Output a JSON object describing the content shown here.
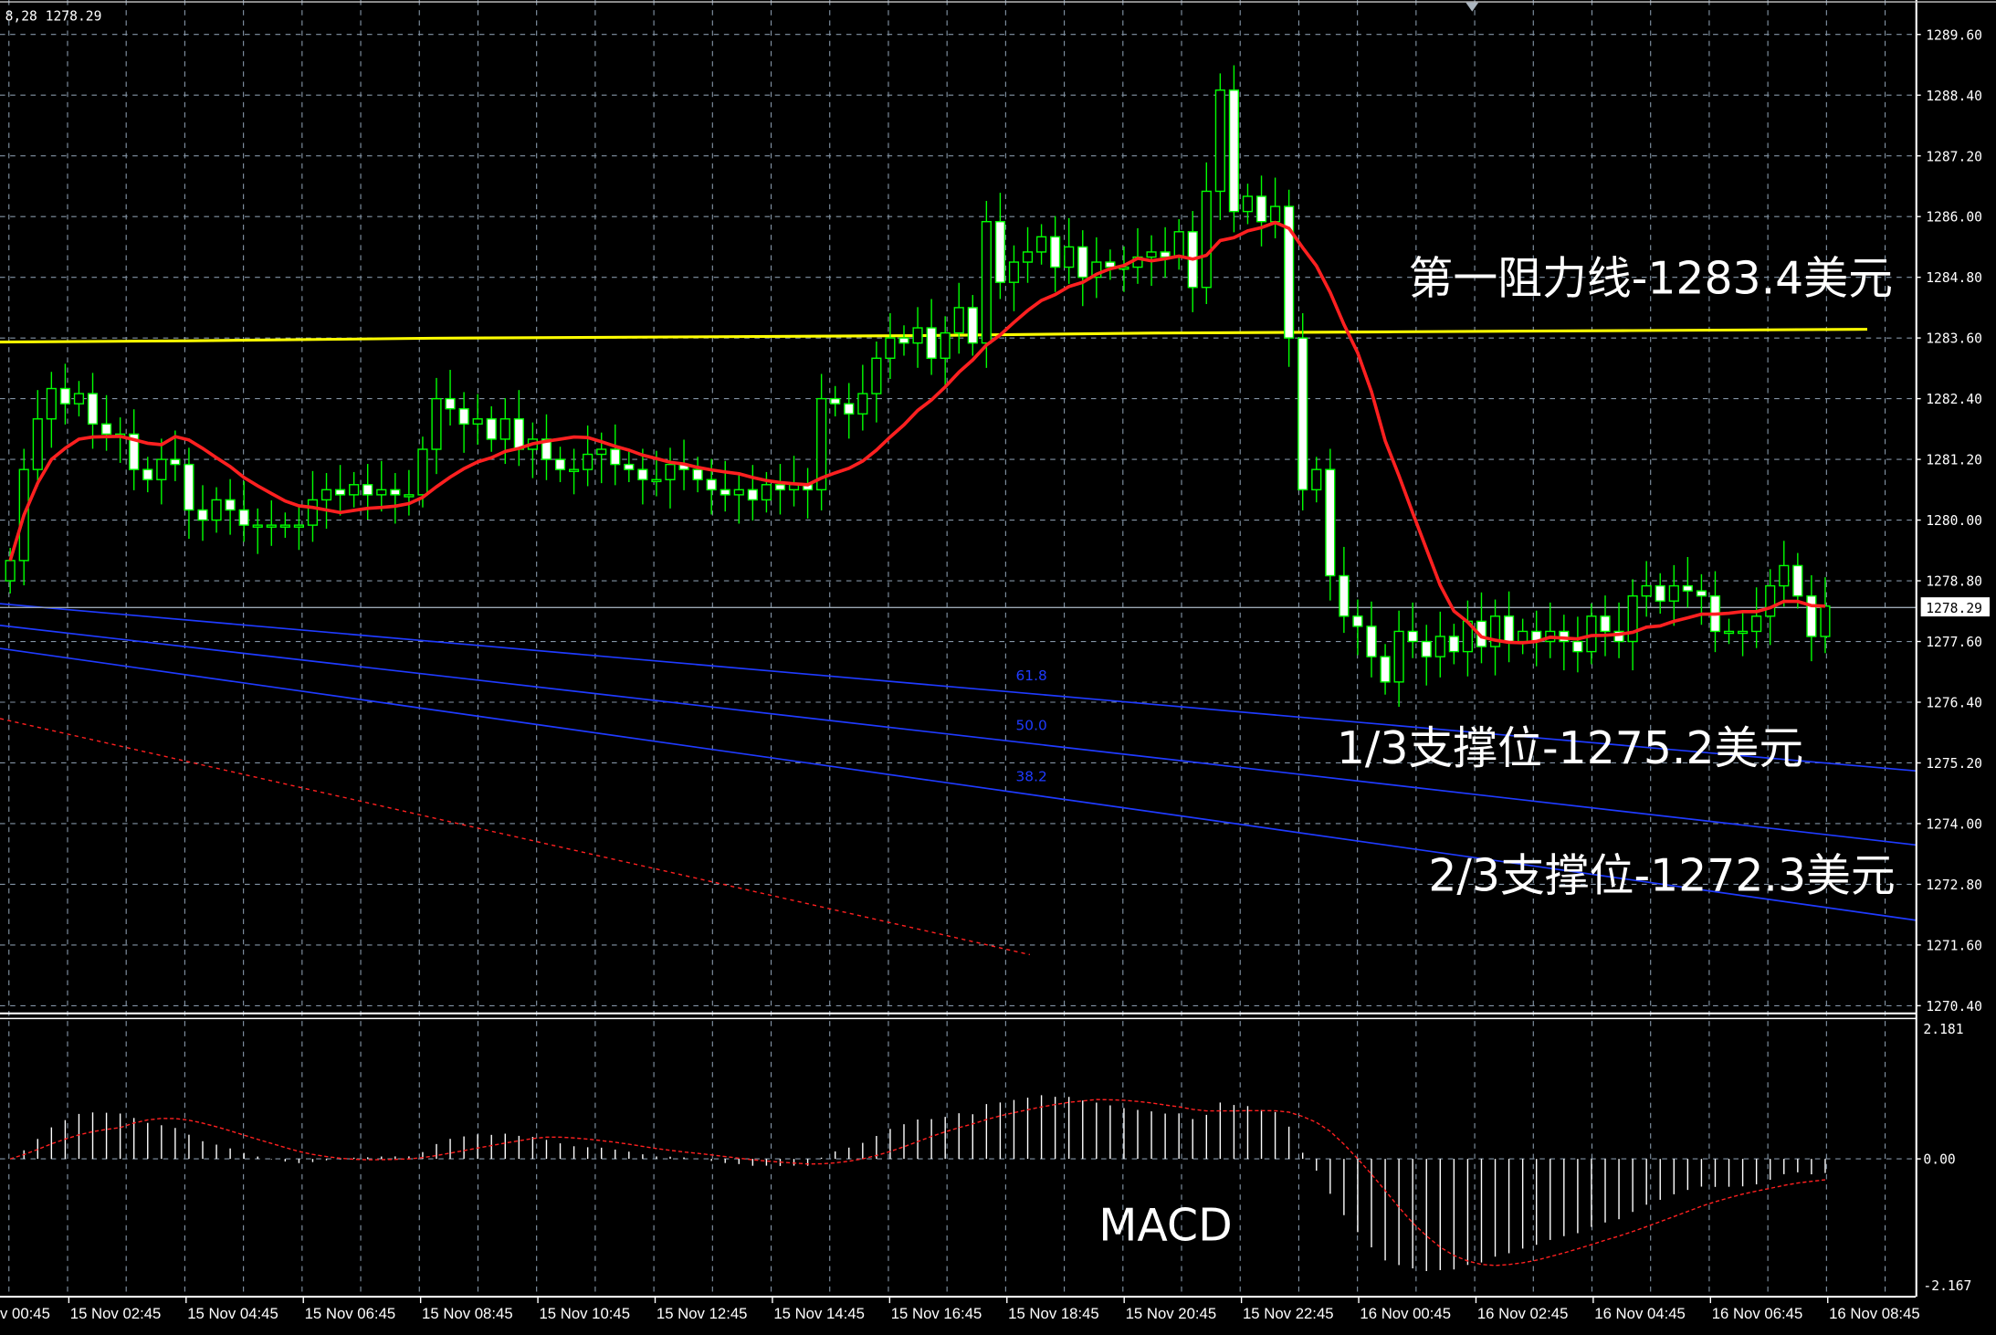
{
  "chart_data": {
    "type": "candlestick",
    "symbol_readout": "8,28 1278.29",
    "current_price": 1278.29,
    "price_ticks": [
      "1289.60",
      "1288.40",
      "1287.20",
      "1286.00",
      "1284.80",
      "1283.60",
      "1282.40",
      "1281.20",
      "1280.00",
      "1278.80",
      "1277.60",
      "1276.40",
      "1275.20",
      "1274.00",
      "1272.80",
      "1271.60",
      "1270.40"
    ],
    "ylim": [
      1270.4,
      1289.6
    ],
    "time_ticks": [
      "v 00:45",
      "15 Nov 02:45",
      "15 Nov 04:45",
      "15 Nov 06:45",
      "15 Nov 08:45",
      "15 Nov 10:45",
      "15 Nov 12:45",
      "15 Nov 14:45",
      "15 Nov 16:45",
      "15 Nov 18:45",
      "15 Nov 20:45",
      "15 Nov 22:45",
      "16 Nov 00:45",
      "16 Nov 02:45",
      "16 Nov 04:45",
      "16 Nov 06:45",
      "16 Nov 08:45"
    ],
    "closes": [
      1279.2,
      1281.0,
      1282.0,
      1282.6,
      1282.3,
      1282.5,
      1281.9,
      1281.7,
      1281.7,
      1281.0,
      1280.8,
      1281.2,
      1281.1,
      1280.2,
      1280.0,
      1280.4,
      1280.2,
      1279.9,
      1279.9,
      1279.9,
      1279.9,
      1279.9,
      1280.4,
      1280.6,
      1280.5,
      1280.7,
      1280.5,
      1280.6,
      1280.5,
      1280.5,
      1281.4,
      1282.4,
      1282.2,
      1281.9,
      1282.0,
      1281.6,
      1282.0,
      1281.4,
      1281.6,
      1281.2,
      1281.0,
      1281.0,
      1281.3,
      1281.4,
      1281.1,
      1281.0,
      1280.8,
      1280.8,
      1281.1,
      1281.0,
      1280.8,
      1280.6,
      1280.5,
      1280.6,
      1280.4,
      1280.7,
      1280.6,
      1280.7,
      1280.6,
      1282.4,
      1282.3,
      1282.1,
      1282.5,
      1283.2,
      1283.6,
      1283.5,
      1283.8,
      1283.2,
      1283.7,
      1284.2,
      1283.5,
      1285.9,
      1284.7,
      1285.1,
      1285.3,
      1285.6,
      1285.0,
      1285.4,
      1284.8,
      1285.1,
      1285.0,
      1285.0,
      1285.2,
      1285.3,
      1285.2,
      1285.7,
      1284.6,
      1286.5,
      1288.5,
      1286.1,
      1286.4,
      1285.9,
      1286.2,
      1283.6,
      1280.6,
      1281.0,
      1278.9,
      1278.1,
      1277.9,
      1277.3,
      1276.8,
      1277.8,
      1277.6,
      1277.3,
      1277.7,
      1277.4,
      1278.0,
      1277.5,
      1278.1,
      1277.6,
      1277.8,
      1277.6,
      1277.8,
      1277.6,
      1277.4,
      1278.1,
      1277.8,
      1277.6,
      1278.5,
      1278.7,
      1278.4,
      1278.7,
      1278.6,
      1278.5,
      1277.8,
      1277.8,
      1277.8,
      1278.1,
      1278.7,
      1279.1,
      1278.5,
      1277.7,
      1278.3
    ],
    "colors": {
      "candle_outline": "#00ff00",
      "bull_body": "#000000",
      "bear_body": "#ffffff",
      "moving_average": "#ff2020",
      "resistance": "#ffff00",
      "fibo": "#1f3bff",
      "grid": "#8495a6"
    },
    "fibo_labels": [
      "61.8",
      "50.0",
      "38.2"
    ],
    "annotations": {
      "resistance": "第一阻力线-1283.4美元",
      "support1": "1/3支撑位-1275.2美元",
      "support2": "2/3支撑位-1272.3美元"
    },
    "macd": {
      "label": "MACD",
      "top_label": "2.181",
      "zero_label": "0.00",
      "bottom_label": "-2.167",
      "range": [
        -2.167,
        2.181
      ]
    }
  }
}
